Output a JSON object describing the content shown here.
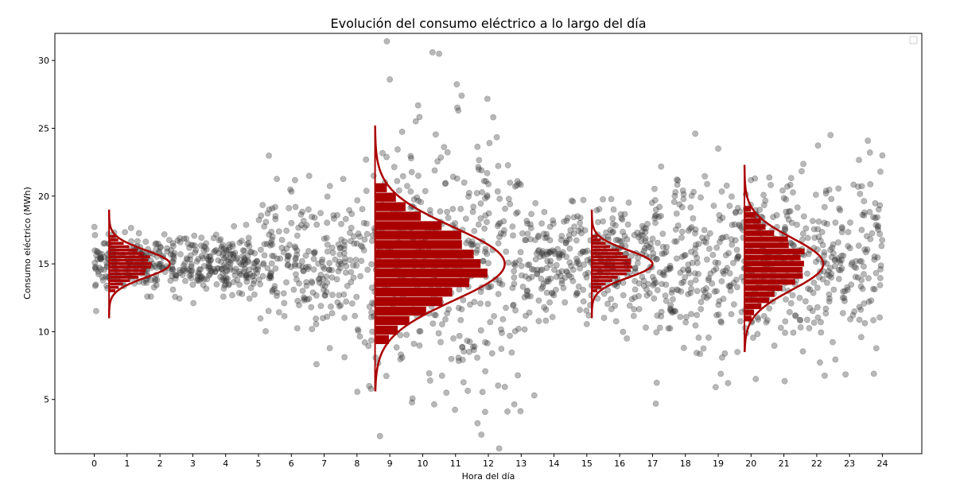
{
  "chart_data": {
    "type": "scatter",
    "title": "Evolución del consumo eléctrico a lo largo del día",
    "xlabel": "Hora del día",
    "ylabel": "Consumo eléctrico (MWh)",
    "xlim": [
      -1.2,
      25.2
    ],
    "ylim": [
      1.0,
      32.0
    ],
    "xticks": [
      0,
      1,
      2,
      3,
      4,
      5,
      6,
      7,
      8,
      9,
      10,
      11,
      12,
      13,
      14,
      15,
      16,
      17,
      18,
      19,
      20,
      21,
      22,
      23,
      24
    ],
    "yticks": [
      5,
      10,
      15,
      20,
      25,
      30
    ],
    "grid": false,
    "legend": {
      "position": "top-right",
      "entries": []
    },
    "scatter_color": "#333333",
    "overlay_color": "#aa0000",
    "scatter_segments": [
      {
        "x_range": [
          0,
          5
        ],
        "mean": 15.0,
        "std": 1.0,
        "n": 420
      },
      {
        "x_range": [
          5,
          8
        ],
        "mean": 15.0,
        "std": 2.6,
        "n": 230
      },
      {
        "x_range": [
          8,
          13
        ],
        "mean": 15.0,
        "std": 5.2,
        "n": 380
      },
      {
        "x_range": [
          13,
          17
        ],
        "mean": 15.0,
        "std": 2.1,
        "n": 330
      },
      {
        "x_range": [
          17,
          20
        ],
        "mean": 15.0,
        "std": 3.1,
        "n": 250
      },
      {
        "x_range": [
          20,
          24
        ],
        "mean": 15.0,
        "std": 3.5,
        "n": 330
      }
    ],
    "scatter_outliers": [
      {
        "x": 10.3,
        "y": 30.6
      },
      {
        "x": 10.5,
        "y": 30.5
      },
      {
        "x": 9.0,
        "y": 28.6
      },
      {
        "x": 8.7,
        "y": 2.3
      },
      {
        "x": 18.3,
        "y": 24.6
      },
      {
        "x": 19.0,
        "y": 23.5
      },
      {
        "x": 24.0,
        "y": 23.0
      },
      {
        "x": 19.3,
        "y": 6.2
      },
      {
        "x": 13.4,
        "y": 5.3
      }
    ],
    "distributions": [
      {
        "x_base": 0.45,
        "mean": 15.0,
        "std": 1.0,
        "curve_range": [
          11.0,
          19.0
        ],
        "bin_width": 0.25,
        "peak_width_hours": 1.85,
        "hist_peak_hours": 1.35
      },
      {
        "x_base": 8.55,
        "mean": 15.0,
        "std": 2.7,
        "curve_range": [
          5.6,
          25.2
        ],
        "bin_width": 0.7,
        "peak_width_hours": 3.95,
        "hist_peak_hours": 3.3
      },
      {
        "x_base": 15.15,
        "mean": 15.0,
        "std": 1.0,
        "curve_range": [
          11.0,
          19.0
        ],
        "bin_width": 0.25,
        "peak_width_hours": 1.85,
        "hist_peak_hours": 1.3
      },
      {
        "x_base": 19.8,
        "mean": 15.0,
        "std": 1.9,
        "curve_range": [
          8.5,
          22.3
        ],
        "bin_width": 0.45,
        "peak_width_hours": 2.4,
        "hist_peak_hours": 1.9
      }
    ]
  }
}
